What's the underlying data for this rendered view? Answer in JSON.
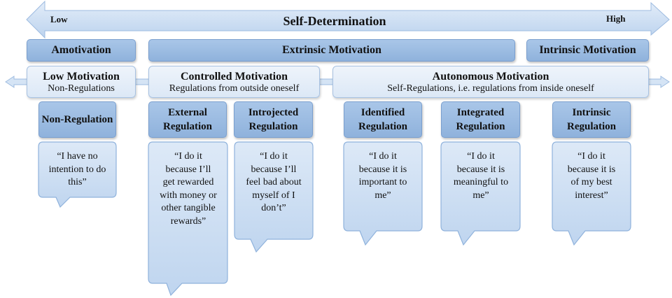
{
  "scale": {
    "title": "Self-Determination",
    "low": "Low",
    "high": "High"
  },
  "types": [
    {
      "label": "Amotivation"
    },
    {
      "label": "Extrinsic Motivation"
    },
    {
      "label": "Intrinsic Motivation"
    }
  ],
  "groups": [
    {
      "title": "Low Motivation",
      "subtitle": "Non-Regulations"
    },
    {
      "title": "Controlled Motivation",
      "subtitle": "Regulations from outside oneself"
    },
    {
      "title": "Autonomous Motivation",
      "subtitle": "Self-Regulations, i.e. regulations from inside oneself"
    }
  ],
  "regulations": [
    {
      "label": "Non-Regulation",
      "quote": "“I have no intention to do this”"
    },
    {
      "label": "External Regulation",
      "quote": "“I do it because I’ll get rewarded with money or other tangible rewards”"
    },
    {
      "label": "Introjected Regulation",
      "quote": "“I do it because I’ll feel bad about myself of I don’t”"
    },
    {
      "label": "Identified Regulation",
      "quote": "“I do it because it is important to me”"
    },
    {
      "label": "Integrated Regulation",
      "quote": "“I do it because it is meaningful to me”"
    },
    {
      "label": "Intrinsic Regulation",
      "quote": "“I do it because it is of my best interest”"
    }
  ],
  "colors": {
    "dark_box": "#9bbce2",
    "light_box": "#e6eef8",
    "arrow": "#c9dcf1"
  }
}
